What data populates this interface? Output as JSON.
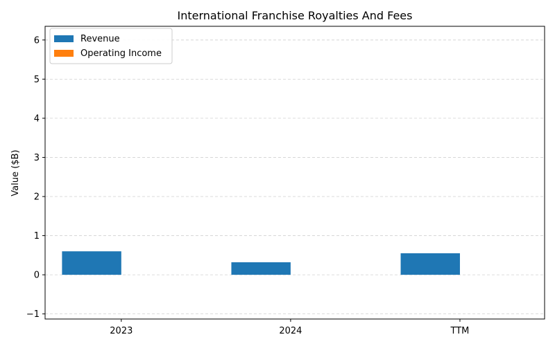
{
  "chart_data": {
    "type": "bar",
    "title": "International Franchise Royalties And Fees",
    "xlabel": "",
    "ylabel": "Value ($B)",
    "categories": [
      "2023",
      "2024",
      "TTM"
    ],
    "series": [
      {
        "name": "Revenue",
        "values": [
          0.6,
          0.32,
          0.55
        ],
        "color": "#1f77b4"
      },
      {
        "name": "Operating Income",
        "values": [
          0,
          0,
          0
        ],
        "color": "#ff7f0e"
      }
    ],
    "ylim": [
      -1.13,
      6.35
    ],
    "yticks": [
      -1,
      0,
      1,
      2,
      3,
      4,
      5,
      6
    ],
    "grid": true,
    "legend": "top-left"
  }
}
